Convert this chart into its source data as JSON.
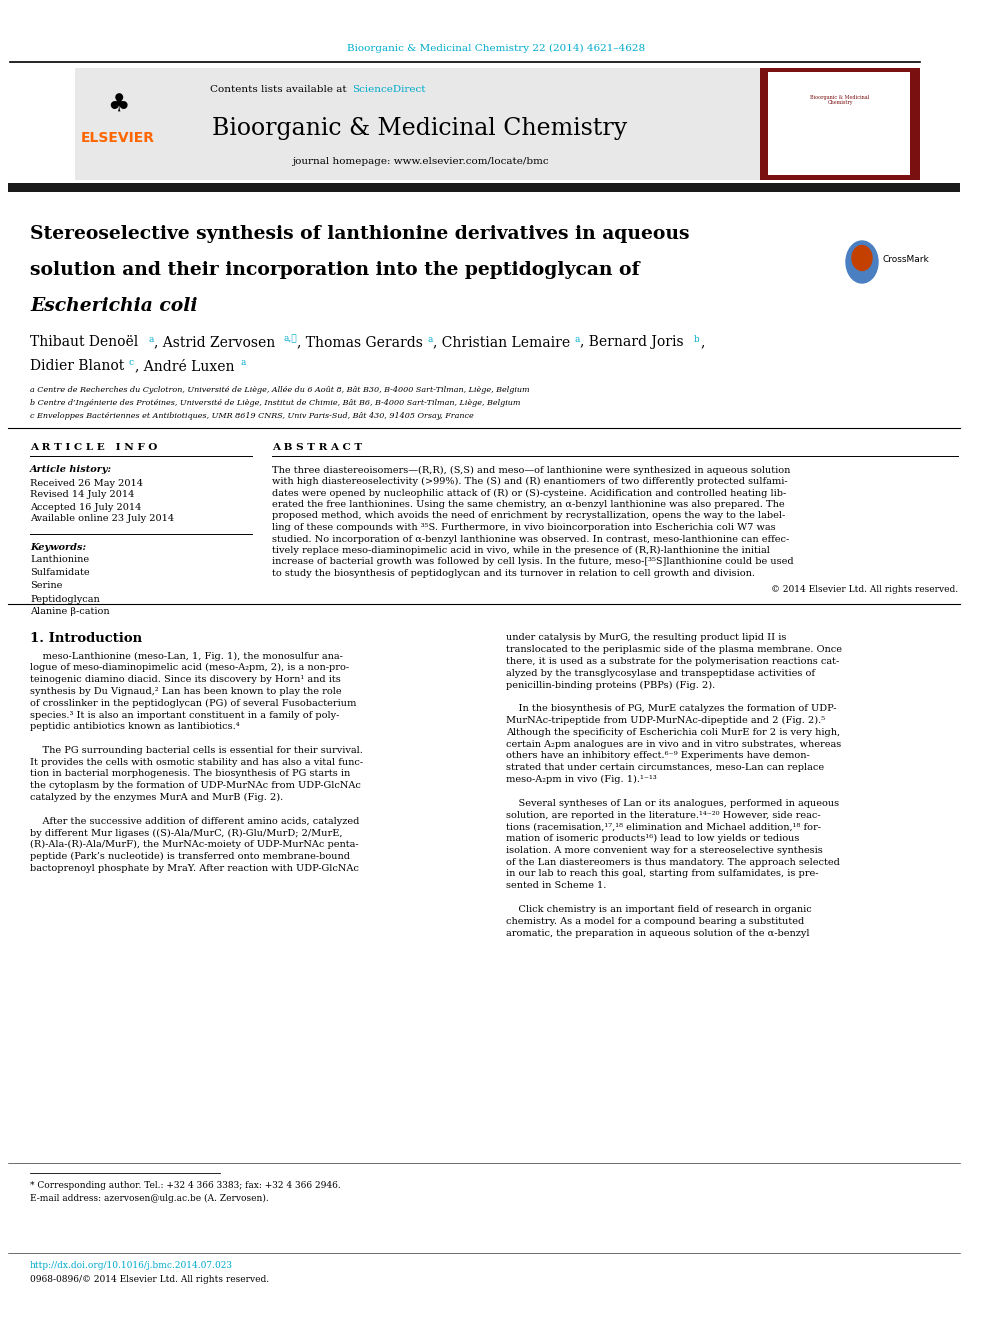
{
  "page_width": 9.92,
  "page_height": 13.23,
  "bg_color": "#ffffff",
  "top_journal_ref": "Bioorganic & Medicinal Chemistry 22 (2014) 4621–4628",
  "top_journal_ref_color": "#00aacc",
  "header_bg": "#e8e8e8",
  "header_contents": "Contents lists available at",
  "sciencedirect_text": "ScienceDirect",
  "sciencedirect_color": "#00aacc",
  "journal_name": "Bioorganic & Medicinal Chemistry",
  "journal_homepage": "journal homepage: www.elsevier.com/locate/bmc",
  "elsevier_color": "#ff6600",
  "title_line1": "Stereoselective synthesis of lanthionine derivatives in aqueous",
  "title_line2": "solution and their incorporation into the peptidoglycan of",
  "title_line3": "Escherichia coli",
  "superscript_color": "#00aacc",
  "affil_a": "a Centre de Recherches du Cyclotron, Université de Liège, Allée du 6 Août 8, Bât B30, B-4000 Sart-Tilman, Liège, Belgium",
  "affil_b": "b Centre d’Ingénierie des Protéines, Université de Liège, Institut de Chimie, Bât B6, B-4000 Sart-Tilman, Liège, Belgium",
  "affil_c": "c Enveloppes Bactériennes et Antibiotiques, UMR 8619 CNRS, Univ Paris-Sud, Bât 430, 91405 Orsay, France",
  "article_info_title": "A R T I C L E   I N F O",
  "article_history_label": "Article history:",
  "received": "Received 26 May 2014",
  "revised": "Revised 14 July 2014",
  "accepted": "Accepted 16 July 2014",
  "available": "Available online 23 July 2014",
  "keywords_label": "Keywords:",
  "keywords": [
    "Lanthionine",
    "Sulfamidate",
    "Serine",
    "Peptidoglycan",
    "Alanine β-cation"
  ],
  "abstract_title": "A B S T R A C T",
  "abstract_lines": [
    "The three diastereoisomers—(R,R), (S,S) and meso—of lanthionine were synthesized in aqueous solution",
    "with high diastereoselectivity (>99%). The (S) and (R) enantiomers of two differently protected sulfami-",
    "dates were opened by nucleophilic attack of (R) or (S)-cysteine. Acidification and controlled heating lib-",
    "erated the free lanthionines. Using the same chemistry, an α-benzyl lanthionine was also prepared. The",
    "proposed method, which avoids the need of enrichment by recrystallization, opens the way to the label-",
    "ling of these compounds with ³⁵S. Furthermore, in vivo bioincorporation into Escherichia coli W7 was",
    "studied. No incorporation of α-benzyl lanthionine was observed. In contrast, meso-lanthionine can effec-",
    "tively replace meso-diaminopimelic acid in vivo, while in the presence of (R,R)-lanthionine the initial",
    "increase of bacterial growth was followed by cell lysis. In the future, meso-[³⁵S]lanthionine could be used",
    "to study the biosynthesis of peptidoglycan and its turnover in relation to cell growth and division."
  ],
  "copyright": "© 2014 Elsevier Ltd. All rights reserved.",
  "section1_title": "1. Introduction",
  "intro_col1_lines": [
    "    meso-Lanthionine (meso-Lan, 1, Fig. 1), the monosulfur ana-",
    "logue of meso-diaminopimelic acid (meso-A₂pm, 2), is a non-pro-",
    "teinogenic diamino diacid. Since its discovery by Horn¹ and its",
    "synthesis by Du Vignaud,² Lan has been known to play the role",
    "of crosslinker in the peptidoglycan (PG) of several Fusobacterium",
    "species.³ It is also an important constituent in a family of poly-",
    "peptidic antibiotics known as lantibiotics.⁴",
    "",
    "    The PG surrounding bacterial cells is essential for their survival.",
    "It provides the cells with osmotic stability and has also a vital func-",
    "tion in bacterial morphogenesis. The biosynthesis of PG starts in",
    "the cytoplasm by the formation of UDP-MurNAc from UDP-GlcNAc",
    "catalyzed by the enzymes MurA and MurB (Fig. 2).",
    "",
    "    After the successive addition of different amino acids, catalyzed",
    "by different Mur ligases ((S)-Ala/MurC, (R)-Glu/MurD; 2/MurE,",
    "(R)-Ala-(R)-Ala/MurF), the MurNAc-moiety of UDP-MurNAc penta-",
    "peptide (Park’s nucleotide) is transferred onto membrane-bound",
    "bactoprenoyl phosphate by MraY. After reaction with UDP-GlcNAc"
  ],
  "intro_col2_lines": [
    "under catalysis by MurG, the resulting product lipid II is",
    "translocated to the periplasmic side of the plasma membrane. Once",
    "there, it is used as a substrate for the polymerisation reactions cat-",
    "alyzed by the transglycosylase and transpeptidase activities of",
    "penicillin-binding proteins (PBPs) (Fig. 2).",
    "",
    "    In the biosynthesis of PG, MurE catalyzes the formation of UDP-",
    "MurNAc-tripeptide from UDP-MurNAc-dipeptide and 2 (Fig. 2).⁵",
    "Although the specificity of Escherichia coli MurE for 2 is very high,",
    "certain A₂pm analogues are in vivo and in vitro substrates, whereas",
    "others have an inhibitory effect.⁶⁻⁹ Experiments have demon-",
    "strated that under certain circumstances, meso-Lan can replace",
    "meso-A₂pm in vivo (Fig. 1).¹⁻¹³",
    "",
    "    Several syntheses of Lan or its analogues, performed in aqueous",
    "solution, are reported in the literature.¹⁴⁻²⁰ However, side reac-",
    "tions (racemisation,¹⁷,¹⁸ elimination and Michael addition,¹⁸ for-",
    "mation of isomeric products¹⁶) lead to low yields or tedious",
    "isolation. A more convenient way for a stereoselective synthesis",
    "of the Lan diastereomers is thus mandatory. The approach selected",
    "in our lab to reach this goal, starting from sulfamidates, is pre-",
    "sented in Scheme 1.",
    "",
    "    Click chemistry is an important field of research in organic",
    "chemistry. As a model for a compound bearing a substituted",
    "aromatic, the preparation in aqueous solution of the α-benzyl"
  ],
  "footnote_star": "* Corresponding author. Tel.: +32 4 366 3383; fax: +32 4 366 2946.",
  "footnote_email": "E-mail address: azervosen@ulg.ac.be (A. Zervosen).",
  "doi_text": "http://dx.doi.org/10.1016/j.bmc.2014.07.023",
  "doi_color": "#00aacc",
  "issn_text": "0968-0896/© 2014 Elsevier Ltd. All rights reserved.",
  "thick_bar_color": "#1a1a1a"
}
